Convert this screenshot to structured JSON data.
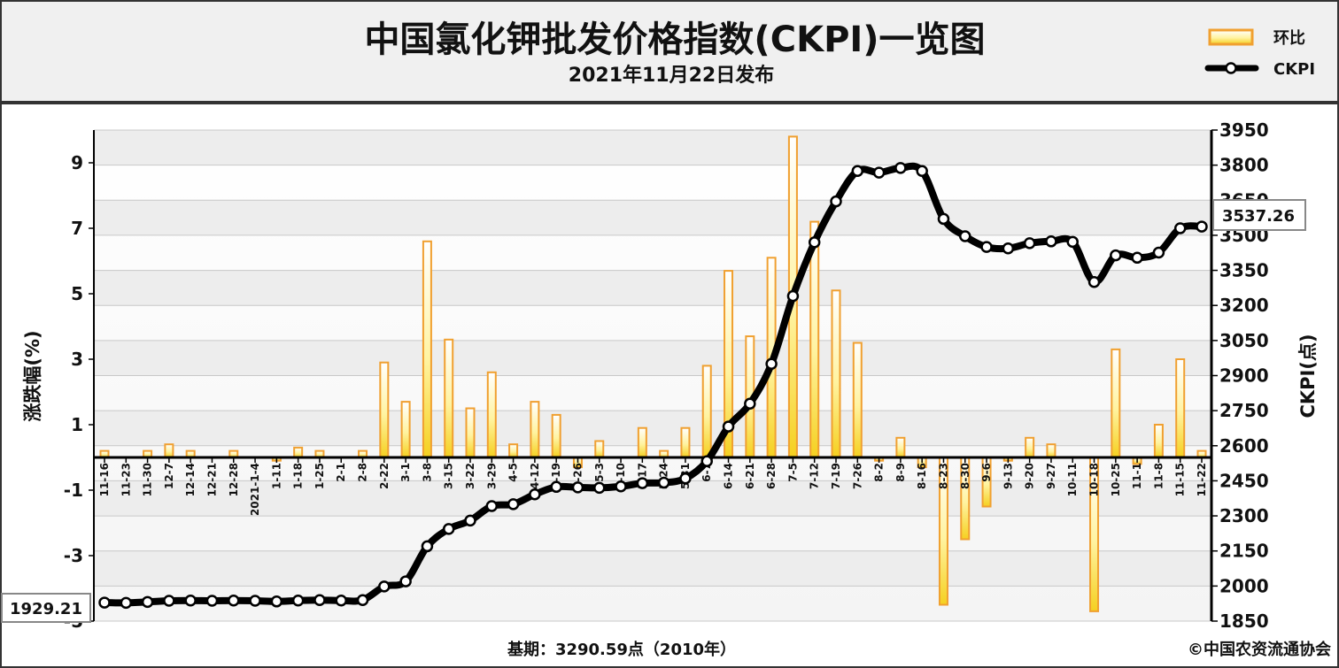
{
  "title": "中国氯化钾批发价格指数(CKPI)一览图",
  "subtitle": "2021年11月22日发布",
  "legend": [
    {
      "label": "环比",
      "type": "bar",
      "color": "#F0A030"
    },
    {
      "label": "CKPI",
      "type": "line",
      "color": "#000000"
    }
  ],
  "footer": {
    "base_period": "基期：3290.59点（2010年）",
    "copyright": "©中国农资流通协会"
  },
  "callouts": {
    "first_value": "1929.21",
    "last_value": "3537.26"
  },
  "chart_data": {
    "type": "bar",
    "title": "中国氯化钾批发价格指数(CKPI)一览图",
    "subtitle": "2021年11月22日发布",
    "categories": [
      "11-16",
      "11-23",
      "11-30",
      "12-7",
      "12-14",
      "12-21",
      "12-28",
      "2021-1-4",
      "1-11",
      "1-18",
      "1-25",
      "2-1",
      "2-8",
      "2-22",
      "3-1",
      "3-8",
      "3-15",
      "3-22",
      "3-29",
      "4-5",
      "4-12",
      "4-19",
      "4-26",
      "5-3",
      "5-10",
      "5-17",
      "5-24",
      "5-31",
      "6-7",
      "6-14",
      "6-21",
      "6-28",
      "7-5",
      "7-12",
      "7-19",
      "7-26",
      "8-2",
      "8-9",
      "8-16",
      "8-23",
      "8-30",
      "9-6",
      "9-13",
      "9-20",
      "9-27",
      "10-11",
      "10-18",
      "10-25",
      "11-1",
      "11-8",
      "11-15",
      "11-22"
    ],
    "series": [
      {
        "name": "环比",
        "type": "bar",
        "axis": "left",
        "color": "#F0A030",
        "values": [
          0.2,
          0.0,
          0.2,
          0.4,
          0.2,
          0.0,
          0.2,
          0.0,
          -0.1,
          0.3,
          0.2,
          0.0,
          0.2,
          2.9,
          1.7,
          6.6,
          3.6,
          1.5,
          2.6,
          0.4,
          1.7,
          1.3,
          -0.3,
          0.5,
          0.0,
          0.9,
          0.2,
          0.9,
          2.8,
          5.7,
          3.7,
          6.1,
          9.8,
          7.2,
          5.1,
          3.5,
          -0.1,
          0.6,
          -0.3,
          -4.5,
          -2.5,
          -1.5,
          -0.1,
          0.6,
          0.4,
          0.0,
          -4.7,
          3.3,
          -0.2,
          1.0,
          3.0,
          0.2
        ]
      },
      {
        "name": "CKPI",
        "type": "line",
        "axis": "right",
        "color": "#000000",
        "values": [
          1929.21,
          1928,
          1932,
          1937,
          1938,
          1937,
          1938,
          1937,
          1934,
          1938,
          1940,
          1938,
          1940,
          1998,
          2020,
          2170,
          2244,
          2280,
          2342,
          2350,
          2392,
          2424,
          2422,
          2420,
          2426,
          2440,
          2442,
          2460,
          2534,
          2682,
          2780,
          2950,
          3240,
          3470,
          3645,
          3775,
          3768,
          3788,
          3775,
          3570,
          3496,
          3450,
          3444,
          3466,
          3474,
          3472,
          3300,
          3414,
          3404,
          3426,
          3530,
          3537.26
        ]
      }
    ],
    "ylabel": "涨跌幅(%)",
    "y2label": "CKPI(点)",
    "ylim": [
      -5,
      10
    ],
    "y2lim": [
      1850,
      3950
    ],
    "yticks": [
      -5,
      -3,
      -1,
      1,
      3,
      5,
      7,
      9
    ],
    "y2ticks": [
      1850,
      2000,
      2150,
      2300,
      2450,
      2600,
      2750,
      2900,
      3050,
      3200,
      3350,
      3500,
      3650,
      3800,
      3950
    ],
    "grid": true,
    "legend_position": "top-right"
  }
}
